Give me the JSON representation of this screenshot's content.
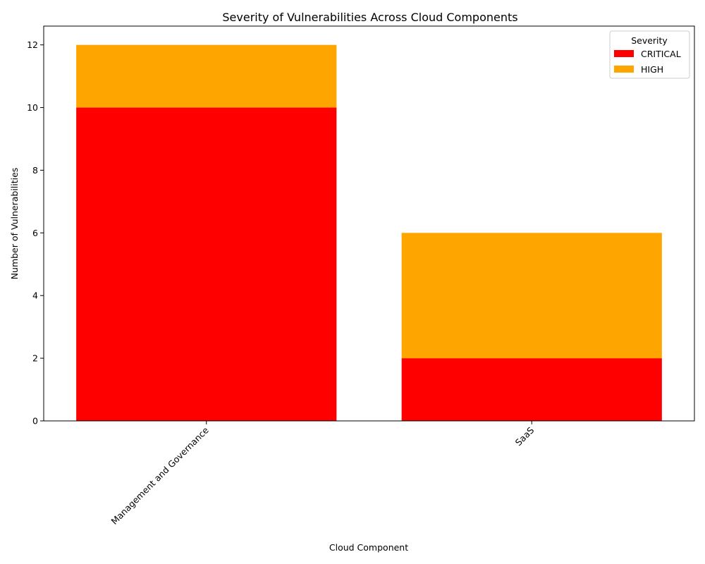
{
  "chart_data": {
    "type": "bar",
    "stacked": true,
    "title": "Severity of Vulnerabilities Across Cloud Components",
    "xlabel": "Cloud Component",
    "ylabel": "Number of Vulnerabilities",
    "categories": [
      "Management and Governance",
      "SaaS"
    ],
    "series": [
      {
        "name": "CRITICAL",
        "color": "#ff0000",
        "values": [
          10,
          2
        ]
      },
      {
        "name": "HIGH",
        "color": "#ffa500",
        "values": [
          2,
          4
        ]
      }
    ],
    "ylim": [
      0,
      12.6
    ],
    "yticks": [
      0,
      2,
      4,
      6,
      8,
      10,
      12
    ],
    "grid": false,
    "legend": {
      "title": "Severity",
      "placement": "top-right"
    }
  }
}
